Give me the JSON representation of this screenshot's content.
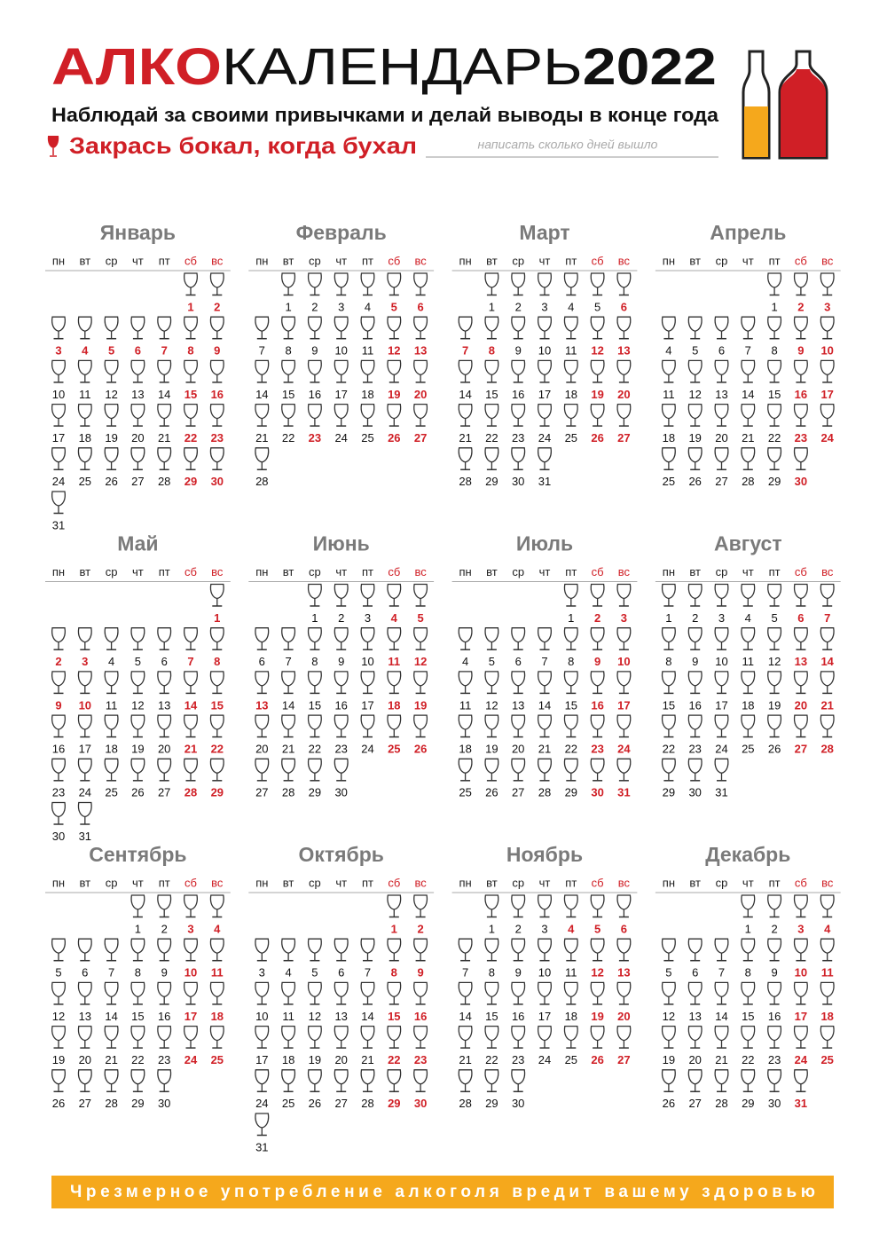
{
  "header": {
    "title_red": "АЛКО",
    "title_thin": "КАЛЕНДАРЬ",
    "title_year": "2022",
    "subtitle": "Наблюдай за своими привычками и делай выводы в конце года",
    "instruction": "Закрась бокал, когда бухал",
    "placeholder": "написать сколько дней вышло"
  },
  "weekdays": [
    "пн",
    "вт",
    "ср",
    "чт",
    "пт",
    "сб",
    "вс"
  ],
  "months": [
    {
      "name": "Январь",
      "weeks": [
        [
          null,
          null,
          null,
          null,
          null,
          1,
          2
        ],
        [
          3,
          4,
          5,
          6,
          7,
          8,
          9
        ],
        [
          10,
          11,
          12,
          13,
          14,
          15,
          16
        ],
        [
          17,
          18,
          19,
          20,
          21,
          22,
          23
        ],
        [
          24,
          25,
          26,
          27,
          28,
          29,
          30
        ],
        [
          31
        ]
      ],
      "red": [
        1,
        2,
        3,
        4,
        5,
        6,
        7,
        8,
        9,
        15,
        16,
        22,
        23,
        29,
        30
      ]
    },
    {
      "name": "Февраль",
      "weeks": [
        [
          null,
          1,
          2,
          3,
          4,
          5,
          6
        ],
        [
          7,
          8,
          9,
          10,
          11,
          12,
          13
        ],
        [
          14,
          15,
          16,
          17,
          18,
          19,
          20
        ],
        [
          21,
          22,
          23,
          24,
          25,
          26,
          27
        ],
        [
          28
        ]
      ],
      "red": [
        5,
        6,
        12,
        13,
        19,
        20,
        23,
        26,
        27
      ]
    },
    {
      "name": "Март",
      "weeks": [
        [
          null,
          1,
          2,
          3,
          4,
          5,
          6
        ],
        [
          7,
          8,
          9,
          10,
          11,
          12,
          13
        ],
        [
          14,
          15,
          16,
          17,
          18,
          19,
          20
        ],
        [
          21,
          22,
          23,
          24,
          25,
          26,
          27
        ],
        [
          28,
          29,
          30,
          31
        ]
      ],
      "red": [
        6,
        7,
        8,
        12,
        13,
        19,
        20,
        26,
        27
      ]
    },
    {
      "name": "Апрель",
      "weeks": [
        [
          null,
          null,
          null,
          null,
          1,
          2,
          3
        ],
        [
          4,
          5,
          6,
          7,
          8,
          9,
          10
        ],
        [
          11,
          12,
          13,
          14,
          15,
          16,
          17
        ],
        [
          18,
          19,
          20,
          21,
          22,
          23,
          24
        ],
        [
          25,
          26,
          27,
          28,
          29,
          30
        ]
      ],
      "red": [
        2,
        3,
        9,
        10,
        16,
        17,
        23,
        24,
        30
      ]
    },
    {
      "name": "Май",
      "weeks": [
        [
          null,
          null,
          null,
          null,
          null,
          null,
          1
        ],
        [
          2,
          3,
          4,
          5,
          6,
          7,
          8
        ],
        [
          9,
          10,
          11,
          12,
          13,
          14,
          15
        ],
        [
          16,
          17,
          18,
          19,
          20,
          21,
          22
        ],
        [
          23,
          24,
          25,
          26,
          27,
          28,
          29
        ],
        [
          30,
          31
        ]
      ],
      "red": [
        1,
        2,
        3,
        7,
        8,
        9,
        10,
        14,
        15,
        21,
        22,
        28,
        29
      ]
    },
    {
      "name": "Июнь",
      "weeks": [
        [
          null,
          null,
          1,
          2,
          3,
          4,
          5
        ],
        [
          6,
          7,
          8,
          9,
          10,
          11,
          12
        ],
        [
          13,
          14,
          15,
          16,
          17,
          18,
          19
        ],
        [
          20,
          21,
          22,
          23,
          24,
          25,
          26
        ],
        [
          27,
          28,
          29,
          30
        ]
      ],
      "red": [
        4,
        5,
        11,
        12,
        13,
        18,
        19,
        25,
        26
      ]
    },
    {
      "name": "Июль",
      "weeks": [
        [
          null,
          null,
          null,
          null,
          1,
          2,
          3
        ],
        [
          4,
          5,
          6,
          7,
          8,
          9,
          10
        ],
        [
          11,
          12,
          13,
          14,
          15,
          16,
          17
        ],
        [
          18,
          19,
          20,
          21,
          22,
          23,
          24
        ],
        [
          25,
          26,
          27,
          28,
          29,
          30,
          31
        ]
      ],
      "red": [
        2,
        3,
        9,
        10,
        16,
        17,
        23,
        24,
        30,
        31
      ]
    },
    {
      "name": "Август",
      "weeks": [
        [
          1,
          2,
          3,
          4,
          5,
          6,
          7
        ],
        [
          8,
          9,
          10,
          11,
          12,
          13,
          14
        ],
        [
          15,
          16,
          17,
          18,
          19,
          20,
          21
        ],
        [
          22,
          23,
          24,
          25,
          26,
          27,
          28
        ],
        [
          29,
          30,
          31
        ]
      ],
      "red": [
        6,
        7,
        13,
        14,
        20,
        21,
        27,
        28
      ]
    },
    {
      "name": "Сентябрь",
      "weeks": [
        [
          null,
          null,
          null,
          1,
          2,
          3,
          4
        ],
        [
          5,
          6,
          7,
          8,
          9,
          10,
          11
        ],
        [
          12,
          13,
          14,
          15,
          16,
          17,
          18
        ],
        [
          19,
          20,
          21,
          22,
          23,
          24,
          25
        ],
        [
          26,
          27,
          28,
          29,
          30
        ]
      ],
      "red": [
        3,
        4,
        10,
        11,
        17,
        18,
        24,
        25
      ]
    },
    {
      "name": "Октябрь",
      "weeks": [
        [
          null,
          null,
          null,
          null,
          null,
          1,
          2
        ],
        [
          3,
          4,
          5,
          6,
          7,
          8,
          9
        ],
        [
          10,
          11,
          12,
          13,
          14,
          15,
          16
        ],
        [
          17,
          18,
          19,
          20,
          21,
          22,
          23
        ],
        [
          24,
          25,
          26,
          27,
          28,
          29,
          30
        ],
        [
          31
        ]
      ],
      "red": [
        1,
        2,
        8,
        9,
        15,
        16,
        22,
        23,
        29,
        30
      ]
    },
    {
      "name": "Ноябрь",
      "weeks": [
        [
          null,
          1,
          2,
          3,
          4,
          5,
          6
        ],
        [
          7,
          8,
          9,
          10,
          11,
          12,
          13
        ],
        [
          14,
          15,
          16,
          17,
          18,
          19,
          20
        ],
        [
          21,
          22,
          23,
          24,
          25,
          26,
          27
        ],
        [
          28,
          29,
          30
        ]
      ],
      "red": [
        4,
        5,
        6,
        12,
        13,
        19,
        20,
        26,
        27
      ]
    },
    {
      "name": "Декабрь",
      "weeks": [
        [
          null,
          null,
          null,
          1,
          2,
          3,
          4
        ],
        [
          5,
          6,
          7,
          8,
          9,
          10,
          11
        ],
        [
          12,
          13,
          14,
          15,
          16,
          17,
          18
        ],
        [
          19,
          20,
          21,
          22,
          23,
          24,
          25
        ],
        [
          26,
          27,
          28,
          29,
          30,
          31
        ]
      ],
      "red": [
        3,
        4,
        10,
        11,
        17,
        18,
        24,
        25,
        31
      ]
    }
  ],
  "footer": "Чрезмерное употребление алкоголя вредит вашему здоровью"
}
